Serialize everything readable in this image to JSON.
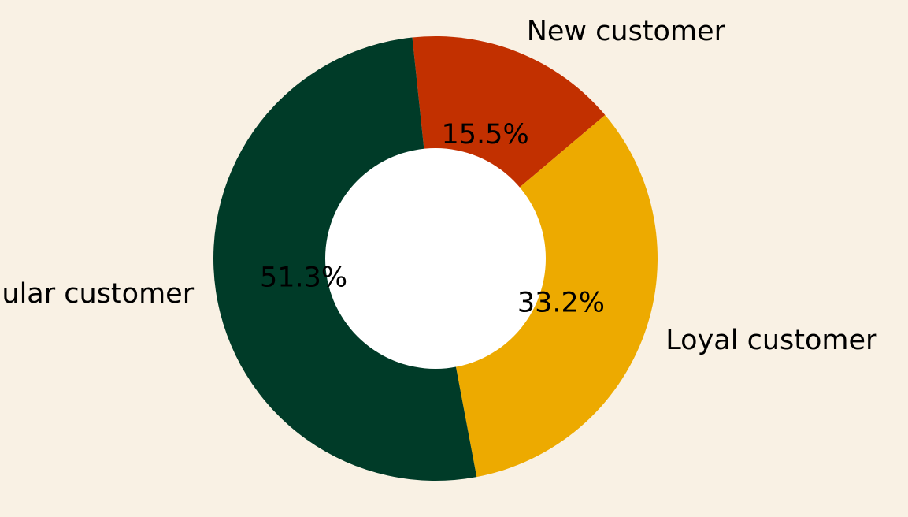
{
  "chart_data": {
    "type": "pie",
    "variant": "donut",
    "categories": [
      "New customer",
      "Loyal customer",
      "Regular customer"
    ],
    "values": [
      15.5,
      33.2,
      51.3
    ],
    "value_labels": [
      "15.5%",
      "33.2%",
      "51.3%"
    ],
    "colors": [
      "#c23000",
      "#edaa00",
      "#003b28"
    ],
    "background_color": "#f9f1e4",
    "hole_color": "#ffffff",
    "legend": "none",
    "title": ""
  }
}
